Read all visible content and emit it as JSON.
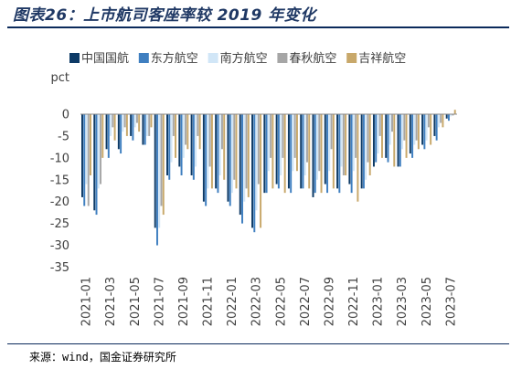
{
  "figure": {
    "title": "图表26：上市航司客座率较 2019 年变化",
    "source": "来源：wind，国金证券研究所"
  },
  "chart_data": {
    "type": "bar",
    "unit_label": "pct",
    "ylim": [
      -35,
      0
    ],
    "yticks": [
      0,
      -5,
      -10,
      -15,
      -20,
      -25,
      -30,
      -35
    ],
    "legend_position": "top",
    "categories": [
      "2021-01",
      "2021-02",
      "2021-03",
      "2021-04",
      "2021-05",
      "2021-06",
      "2021-07",
      "2021-08",
      "2021-09",
      "2021-10",
      "2021-11",
      "2021-12",
      "2022-01",
      "2022-02",
      "2022-03",
      "2022-04",
      "2022-05",
      "2022-06",
      "2022-07",
      "2022-08",
      "2022-09",
      "2022-10",
      "2022-11",
      "2022-12",
      "2023-01",
      "2023-02",
      "2023-03",
      "2023-04",
      "2023-05",
      "2023-06",
      "2023-07"
    ],
    "xtick_labels": [
      "2021-01",
      "2021-03",
      "2021-05",
      "2021-07",
      "2021-09",
      "2021-11",
      "2022-01",
      "2022-03",
      "2022-05",
      "2022-07",
      "2022-09",
      "2022-11",
      "2023-01",
      "2023-03",
      "2023-05",
      "2023-07"
    ],
    "series": [
      {
        "name": "中国国航",
        "color": "#0d3a66",
        "values": [
          -19,
          -22,
          -8,
          -8,
          -5,
          -7,
          -26,
          -14,
          -12,
          -14,
          -20,
          -17,
          -20,
          -23,
          -26,
          -18,
          -16,
          -17,
          -17,
          -19,
          -16,
          -17,
          -16,
          -17,
          -12,
          -10,
          -12,
          -9,
          -7,
          -5,
          -1
        ]
      },
      {
        "name": "东方航空",
        "color": "#3f7fc0",
        "values": [
          -21,
          -23,
          -10,
          -9,
          -6,
          -7,
          -30,
          -15,
          -14,
          -15,
          -21,
          -18,
          -21,
          -25,
          -27,
          -18,
          -17,
          -18,
          -17,
          -18,
          -18,
          -18,
          -18,
          -17,
          -11,
          -11,
          -12,
          -10,
          -8,
          -6,
          -1.5
        ]
      },
      {
        "name": "南方航空",
        "color": "#d1e6f7",
        "values": [
          -16,
          -17,
          -5,
          -4,
          -3,
          -5,
          -26,
          -11,
          -10,
          -12,
          -17,
          -14,
          -18,
          -20,
          -22,
          -13,
          -14,
          -13,
          -14,
          -15,
          -13,
          -12,
          -13,
          -15,
          -9,
          -7,
          -8,
          -7,
          -6,
          -3,
          -0.5
        ]
      },
      {
        "name": "春秋航空",
        "color": "#a6a6a6",
        "values": [
          -21,
          -16,
          -3,
          -3,
          -2,
          -5,
          -21,
          -5,
          -7,
          -5,
          -12,
          -8,
          -15,
          -17,
          -16,
          -10,
          -10,
          -10,
          -11,
          -13,
          -8,
          -14,
          -10,
          -11,
          -5,
          -4,
          -6,
          -6,
          -3,
          -2,
          -0.3
        ]
      },
      {
        "name": "吉祥航空",
        "color": "#c8a86a",
        "values": [
          -14,
          -10,
          -6,
          -5,
          -4,
          -3,
          -23,
          -10,
          -8,
          -8,
          -17,
          -15,
          -17,
          -19,
          -26,
          -17,
          -18,
          -13,
          -17,
          -18,
          -17,
          -14,
          -20,
          -14,
          -10,
          -12,
          -10,
          -8,
          -7,
          -3,
          1
        ]
      }
    ]
  }
}
